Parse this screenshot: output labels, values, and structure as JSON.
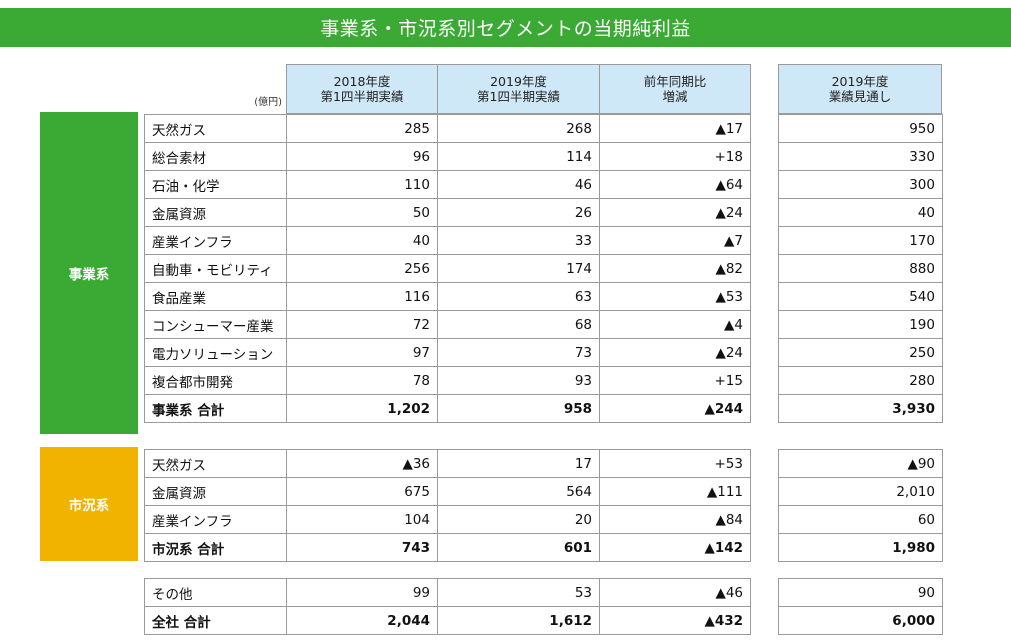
{
  "title": "事業系・市況系別セグメントの当期純利益",
  "unit": "(億円)",
  "headers": {
    "fy2018_q1": [
      "2018年度",
      "第1四半期実績"
    ],
    "fy2019_q1": [
      "2019年度",
      "第1四半期実績"
    ],
    "yoy": [
      "前年同期比",
      "増減"
    ],
    "fy2019_forecast": [
      "2019年度",
      "業績見通し"
    ]
  },
  "segments": {
    "business": {
      "label": "事業系",
      "color": "#3aaa35",
      "rows": [
        {
          "name": "天然ガス",
          "v2018": "285",
          "v2019": "268",
          "diff": "▲17",
          "forecast": "950"
        },
        {
          "name": "総合素材",
          "v2018": "96",
          "v2019": "114",
          "diff": "+18",
          "forecast": "330"
        },
        {
          "name": "石油・化学",
          "v2018": "110",
          "v2019": "46",
          "diff": "▲64",
          "forecast": "300"
        },
        {
          "name": "金属資源",
          "v2018": "50",
          "v2019": "26",
          "diff": "▲24",
          "forecast": "40"
        },
        {
          "name": "産業インフラ",
          "v2018": "40",
          "v2019": "33",
          "diff": "▲7",
          "forecast": "170"
        },
        {
          "name": "自動車・モビリティ",
          "v2018": "256",
          "v2019": "174",
          "diff": "▲82",
          "forecast": "880"
        },
        {
          "name": "食品産業",
          "v2018": "116",
          "v2019": "63",
          "diff": "▲53",
          "forecast": "540"
        },
        {
          "name": "コンシューマー産業",
          "v2018": "72",
          "v2019": "68",
          "diff": "▲4",
          "forecast": "190"
        },
        {
          "name": "電力ソリューション",
          "v2018": "97",
          "v2019": "73",
          "diff": "▲24",
          "forecast": "250"
        },
        {
          "name": "複合都市開発",
          "v2018": "78",
          "v2019": "93",
          "diff": "+15",
          "forecast": "280"
        },
        {
          "name": "事業系 合計",
          "v2018": "1,202",
          "v2019": "958",
          "diff": "▲244",
          "forecast": "3,930",
          "total": true
        }
      ]
    },
    "market": {
      "label": "市況系",
      "color": "#f2b200",
      "rows": [
        {
          "name": "天然ガス",
          "v2018": "▲36",
          "v2019": "17",
          "diff": "+53",
          "forecast": "▲90"
        },
        {
          "name": "金属資源",
          "v2018": "675",
          "v2019": "564",
          "diff": "▲111",
          "forecast": "2,010"
        },
        {
          "name": "産業インフラ",
          "v2018": "104",
          "v2019": "20",
          "diff": "▲84",
          "forecast": "60"
        },
        {
          "name": "市況系 合計",
          "v2018": "743",
          "v2019": "601",
          "diff": "▲142",
          "forecast": "1,980",
          "total": true
        }
      ]
    },
    "other": {
      "rows": [
        {
          "name": "その他",
          "v2018": "99",
          "v2019": "53",
          "diff": "▲46",
          "forecast": "90"
        },
        {
          "name": "全社 合計",
          "v2018": "2,044",
          "v2019": "1,612",
          "diff": "▲432",
          "forecast": "6,000",
          "total": true
        }
      ]
    }
  }
}
